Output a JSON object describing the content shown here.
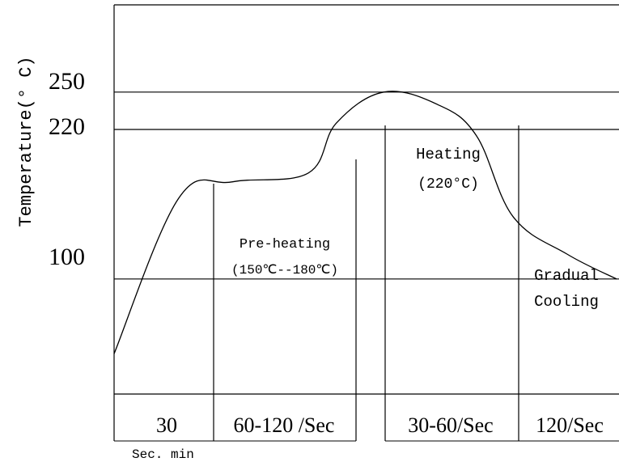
{
  "chart_data": {
    "type": "line",
    "ylabel": "Temperature(° C)",
    "y_ticks": [
      "250",
      "220",
      "100"
    ],
    "ylim": [
      -30,
      320
    ],
    "grid": "horizontal lines at 250, 220 and 100 °C",
    "x": [
      0,
      30,
      55,
      90,
      103,
      125,
      150,
      168,
      185,
      210,
      233
    ],
    "y": [
      40,
      165,
      178,
      185,
      225,
      250,
      240,
      215,
      150,
      120,
      100
    ],
    "phases": [
      {
        "label": "Pre-heating",
        "detail": "(150℃--180℃)"
      },
      {
        "label": "Heating",
        "detail": "(220°C)"
      },
      {
        "label": "Gradual",
        "detail": "Cooling"
      }
    ],
    "durations": [
      "30",
      "60-120 /Sec",
      "30-60/Sec",
      "120/Sec"
    ],
    "footnote": "Sec. min",
    "line_color": "#000000"
  }
}
